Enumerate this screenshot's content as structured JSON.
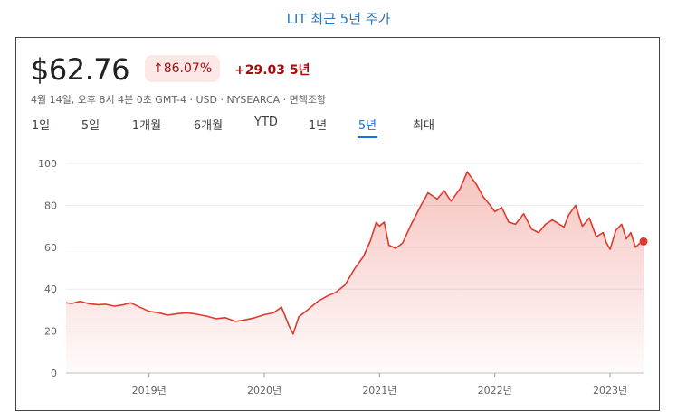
{
  "caption": "LIT 최근 5년 주가",
  "quote": {
    "price": "$62.76",
    "percent_change": "86.07%",
    "change": "+29.03 5년",
    "meta": "4월 14일, 오후 8시 4분 0초 GMT-4 · USD · NYSEARCA · 면책조항"
  },
  "tabs": [
    "1일",
    "5일",
    "1개월",
    "6개월",
    "YTD",
    "1년",
    "5년",
    "최대"
  ],
  "active_tab": "5년",
  "colors": {
    "line": "#e0392b",
    "accent": "#1a73e8",
    "grid": "#e8eaed",
    "badge_bg": "#fce8e6",
    "badge_text": "#a50e0e"
  },
  "chart_data": {
    "type": "area",
    "title": "",
    "xlabel": "",
    "ylabel": "",
    "ylim": [
      0,
      100
    ],
    "yticks": [
      0,
      20,
      40,
      60,
      80,
      100
    ],
    "xlim": [
      2018.28,
      2023.29
    ],
    "xticks": [
      {
        "value": 2019.0,
        "label": "2019년"
      },
      {
        "value": 2020.0,
        "label": "2020년"
      },
      {
        "value": 2021.0,
        "label": "2021년"
      },
      {
        "value": 2022.0,
        "label": "2022년"
      },
      {
        "value": 2023.0,
        "label": "2023년"
      }
    ],
    "grid": true,
    "series": [
      {
        "x": [
          2018.28,
          2018.33,
          2018.4,
          2018.48,
          2018.56,
          2018.62,
          2018.7,
          2018.78,
          2018.84,
          2018.92,
          2019.0,
          2019.08,
          2019.16,
          2019.25,
          2019.33,
          2019.4,
          2019.5,
          2019.58,
          2019.66,
          2019.75,
          2019.83,
          2019.92,
          2020.0,
          2020.08,
          2020.15,
          2020.21,
          2020.25,
          2020.3,
          2020.38,
          2020.46,
          2020.55,
          2020.62,
          2020.7,
          2020.78,
          2020.86,
          2020.92,
          2020.97,
          2021.0,
          2021.04,
          2021.08,
          2021.14,
          2021.2,
          2021.28,
          2021.36,
          2021.42,
          2021.5,
          2021.56,
          2021.62,
          2021.7,
          2021.76,
          2021.8,
          2021.84,
          2021.9,
          2021.96,
          2022.0,
          2022.06,
          2022.12,
          2022.18,
          2022.25,
          2022.32,
          2022.38,
          2022.44,
          2022.5,
          2022.56,
          2022.6,
          2022.64,
          2022.7,
          2022.76,
          2022.82,
          2022.88,
          2022.94,
          2022.97,
          2023.0,
          2023.05,
          2023.1,
          2023.14,
          2023.18,
          2023.22,
          2023.26,
          2023.29
        ],
        "values": [
          33.5,
          33.2,
          34.2,
          33,
          32.6,
          32.8,
          31.9,
          32.6,
          33.5,
          31.4,
          29.4,
          28.8,
          27.6,
          28.3,
          28.7,
          28.2,
          27.1,
          25.9,
          26.4,
          24.6,
          25.3,
          26.4,
          27.8,
          28.7,
          31.4,
          23,
          18.6,
          26.8,
          30.3,
          34,
          36.8,
          38.5,
          42,
          49.5,
          55.6,
          63,
          71.8,
          70.1,
          72,
          61,
          59.5,
          62,
          71.5,
          80,
          86,
          83,
          87,
          82,
          88,
          96,
          93,
          90,
          84,
          80,
          77,
          79,
          72,
          71,
          76,
          68.6,
          67,
          71,
          73,
          71,
          69.6,
          75.3,
          80,
          70,
          74,
          65,
          67,
          62,
          59,
          68,
          71,
          64,
          67,
          60,
          62,
          62.76
        ]
      }
    ]
  }
}
